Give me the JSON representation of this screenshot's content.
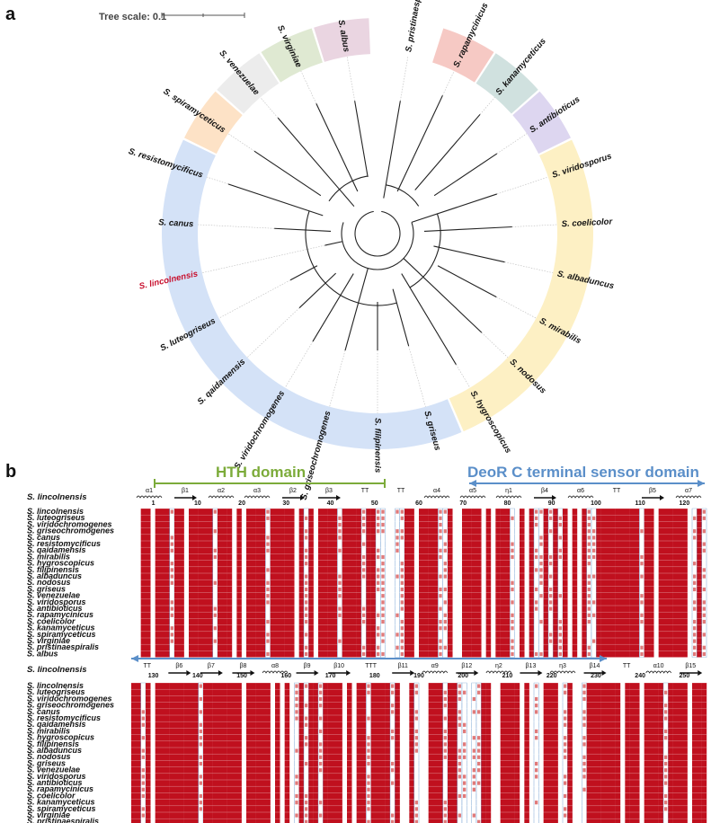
{
  "figure": {
    "panel_a_label": "a",
    "panel_b_label": "b",
    "tree_scale_label": "Tree scale: 0.1",
    "highlight_color": "#c8102e",
    "species_order_tree": [
      {
        "name": "S. pristinaespiralis",
        "clade": "none"
      },
      {
        "name": "S. rapamycinicus",
        "clade": "red"
      },
      {
        "name": "S. kanamyceticus",
        "clade": "teal"
      },
      {
        "name": "S. antibioticus",
        "clade": "purple"
      },
      {
        "name": "S. viridosporus",
        "clade": "yellow"
      },
      {
        "name": "S. coelicolor",
        "clade": "yellow"
      },
      {
        "name": "S. albaduncus",
        "clade": "yellow"
      },
      {
        "name": "S. mirabilis",
        "clade": "yellow"
      },
      {
        "name": "S. nodosus",
        "clade": "yellow"
      },
      {
        "name": "S. hygroscopicus",
        "clade": "yellow"
      },
      {
        "name": "S. griseus",
        "clade": "blue"
      },
      {
        "name": "S. filipinensis",
        "clade": "blue"
      },
      {
        "name": "S. griseochromogenes",
        "clade": "blue"
      },
      {
        "name": "S. viridochromogenes",
        "clade": "blue"
      },
      {
        "name": "S. qaidamensis",
        "clade": "blue"
      },
      {
        "name": "S. luteogriseus",
        "clade": "blue"
      },
      {
        "name": "S. lincolnensis",
        "clade": "blue",
        "highlight": true
      },
      {
        "name": "S. canus",
        "clade": "blue"
      },
      {
        "name": "S. resistomycificus",
        "clade": "blue"
      },
      {
        "name": "S. spiramyceticus",
        "clade": "orange"
      },
      {
        "name": "S. venezuelae",
        "clade": "grey"
      },
      {
        "name": "S. virginiae",
        "clade": "green"
      },
      {
        "name": "S. albus",
        "clade": "pink"
      }
    ],
    "clade_colors": {
      "red": "#f6c9c4",
      "teal": "#d0e1df",
      "purple": "#ddd6f0",
      "yellow": "#fdf0c4",
      "blue": "#d4e2f7",
      "orange": "#fde2c6",
      "grey": "#ececec",
      "green": "#dfe9d2",
      "pink": "#ead5e1"
    },
    "alignment": {
      "domain_hth": "HTH domain",
      "domain_deor": "DeoR C terminal sensor domain",
      "reference": "S. lincolnensis",
      "species": [
        "S. lincolnensis",
        "S. luteogriseus",
        "S. viridochromogenes",
        "S. griseochromogenes",
        "S. canus",
        "S. resistomycificus",
        "S. qaidamensis",
        "S. mirabilis",
        "S. hygroscopicus",
        "S. filipinensis",
        "S. albaduncus",
        "S. nodosus",
        "S. griseus",
        "S. venezuelae",
        "S. viridosporus",
        "S. antibioticus",
        "S. rapamycinicus",
        "S. coelicolor",
        "S. kanamyceticus",
        "S. spiramyceticus",
        "S. virginiae",
        "S. pristinaespiralis",
        "S. albus"
      ],
      "block1_ss": [
        "α1",
        "β1",
        "α2",
        "α3",
        "β2",
        "β3",
        "TT",
        "TT",
        "α4",
        "α5",
        "η1",
        "β4",
        "α6",
        "TT",
        "β5",
        "α7"
      ],
      "block1_nums": [
        "1",
        "10",
        "20",
        "30",
        "40",
        "50",
        "60",
        "70",
        "80",
        "90",
        "100",
        "110",
        "120"
      ],
      "block2_ss": [
        "TT",
        "β6",
        "β7",
        "β8",
        "α8",
        "β9",
        "β10",
        "TTT",
        "β11",
        "α9",
        "β12",
        "η2",
        "β13",
        "η3",
        "β14",
        "TT",
        "α10",
        "β15"
      ],
      "block2_nums": [
        "130",
        "140",
        "150",
        "160",
        "170",
        "180",
        "190",
        "200",
        "210",
        "220",
        "230",
        "240",
        "250"
      ],
      "conserved_color": "#c0101e",
      "similar_color": "#d9534f"
    }
  }
}
